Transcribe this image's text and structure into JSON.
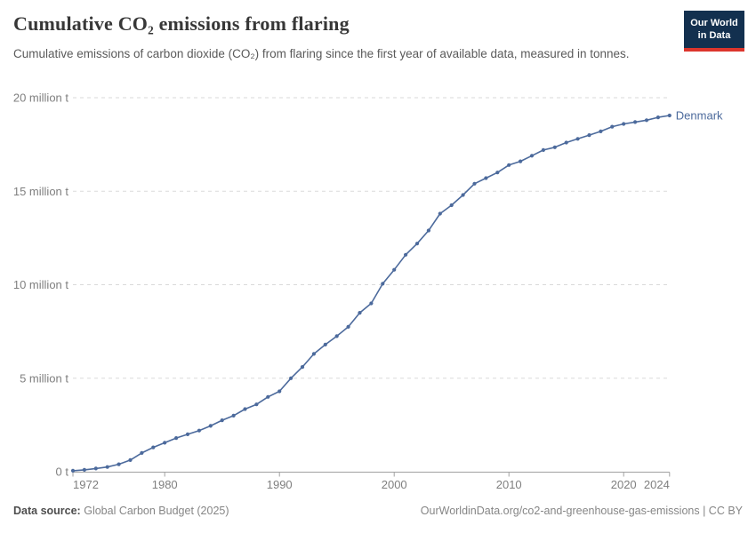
{
  "header": {
    "title": "Cumulative CO₂ emissions from flaring",
    "subtitle": "Cumulative emissions of carbon dioxide (CO₂) from flaring since the first year of available data, measured in tonnes.",
    "logo": {
      "line1": "Our World",
      "line2": "in Data"
    }
  },
  "chart_data": {
    "type": "line",
    "title": "Cumulative CO₂ emissions from flaring",
    "unit": "million t",
    "xlim": [
      1972,
      2024
    ],
    "ylim": [
      0,
      20
    ],
    "grid": "horizontal-dashed",
    "legend_position": "end-of-line-label",
    "x_ticks": [
      1972,
      1980,
      1990,
      2000,
      2010,
      2020,
      2024
    ],
    "y_ticks": [
      {
        "value": 0,
        "label": "0 t"
      },
      {
        "value": 5,
        "label": "5 million t"
      },
      {
        "value": 10,
        "label": "10 million t"
      },
      {
        "value": 15,
        "label": "15 million t"
      },
      {
        "value": 20,
        "label": "20 million t"
      }
    ],
    "series": [
      {
        "name": "Denmark",
        "color": "#4C6A9C",
        "x": [
          1972,
          1973,
          1974,
          1975,
          1976,
          1977,
          1978,
          1979,
          1980,
          1981,
          1982,
          1983,
          1984,
          1985,
          1986,
          1987,
          1988,
          1989,
          1990,
          1991,
          1992,
          1993,
          1994,
          1995,
          1996,
          1997,
          1998,
          1999,
          2000,
          2001,
          2002,
          2003,
          2004,
          2005,
          2006,
          2007,
          2008,
          2009,
          2010,
          2011,
          2012,
          2013,
          2014,
          2015,
          2016,
          2017,
          2018,
          2019,
          2020,
          2021,
          2022,
          2023,
          2024
        ],
        "values": [
          0.05,
          0.1,
          0.17,
          0.25,
          0.4,
          0.62,
          1.0,
          1.3,
          1.55,
          1.8,
          2.0,
          2.2,
          2.45,
          2.75,
          3.0,
          3.35,
          3.6,
          4.0,
          4.3,
          5.0,
          5.6,
          6.3,
          6.8,
          7.25,
          7.75,
          8.5,
          9.0,
          10.05,
          10.8,
          11.6,
          12.2,
          12.9,
          13.8,
          14.25,
          14.8,
          15.4,
          15.7,
          16.0,
          16.4,
          16.6,
          16.9,
          17.2,
          17.35,
          17.6,
          17.8,
          18.0,
          18.2,
          18.45,
          18.6,
          18.7,
          18.8,
          18.95,
          19.05
        ]
      }
    ]
  },
  "footer": {
    "source_label": "Data source:",
    "source_value": "Global Carbon Budget (2025)",
    "link": "OurWorldinData.org/co2-and-greenhouse-gas-emissions",
    "license_suffix": "| CC BY"
  }
}
